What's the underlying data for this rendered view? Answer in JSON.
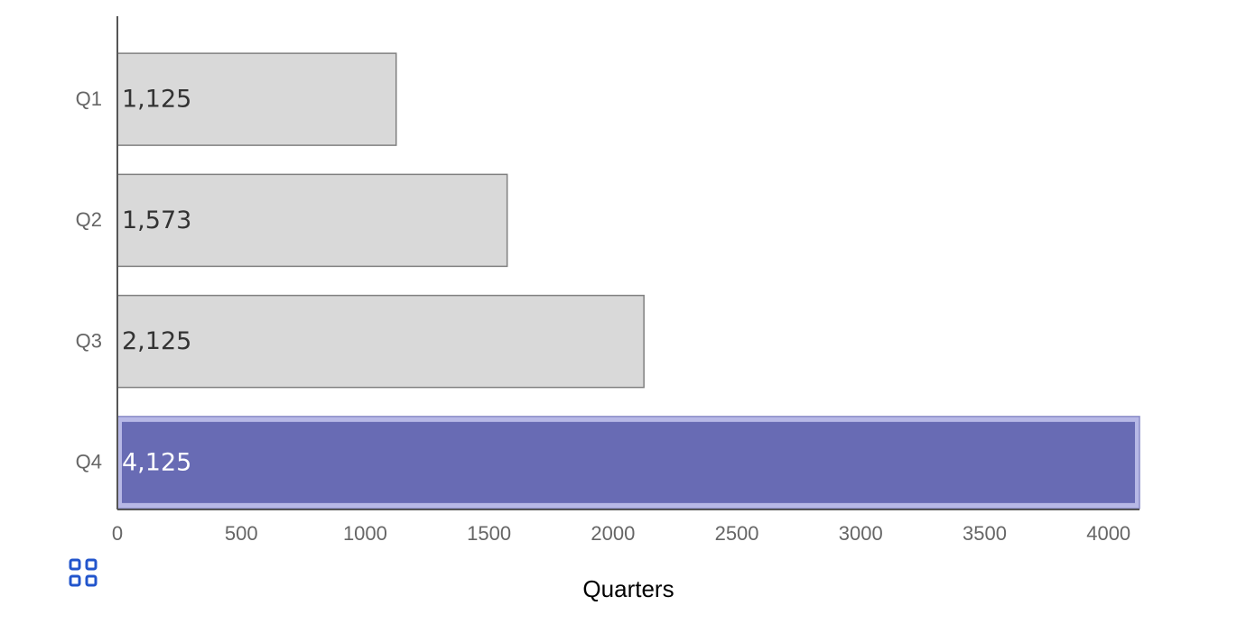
{
  "chart_data": {
    "type": "hbar",
    "x_label": "Quarters",
    "categories": [
      "Q1",
      "Q2",
      "Q3",
      "Q4"
    ],
    "values": [
      1125,
      1573,
      2125,
      4125
    ],
    "value_labels": [
      "1,125",
      "1,573",
      "2,125",
      "4,125"
    ],
    "colors": [
      "#d9d9d9",
      "#d9d9d9",
      "#d9d9d9",
      "#686bb4"
    ],
    "xlim": [
      0,
      4125
    ],
    "xticks": [
      0,
      500,
      1000,
      1500,
      2000,
      2500,
      3000,
      3500,
      4000
    ]
  }
}
